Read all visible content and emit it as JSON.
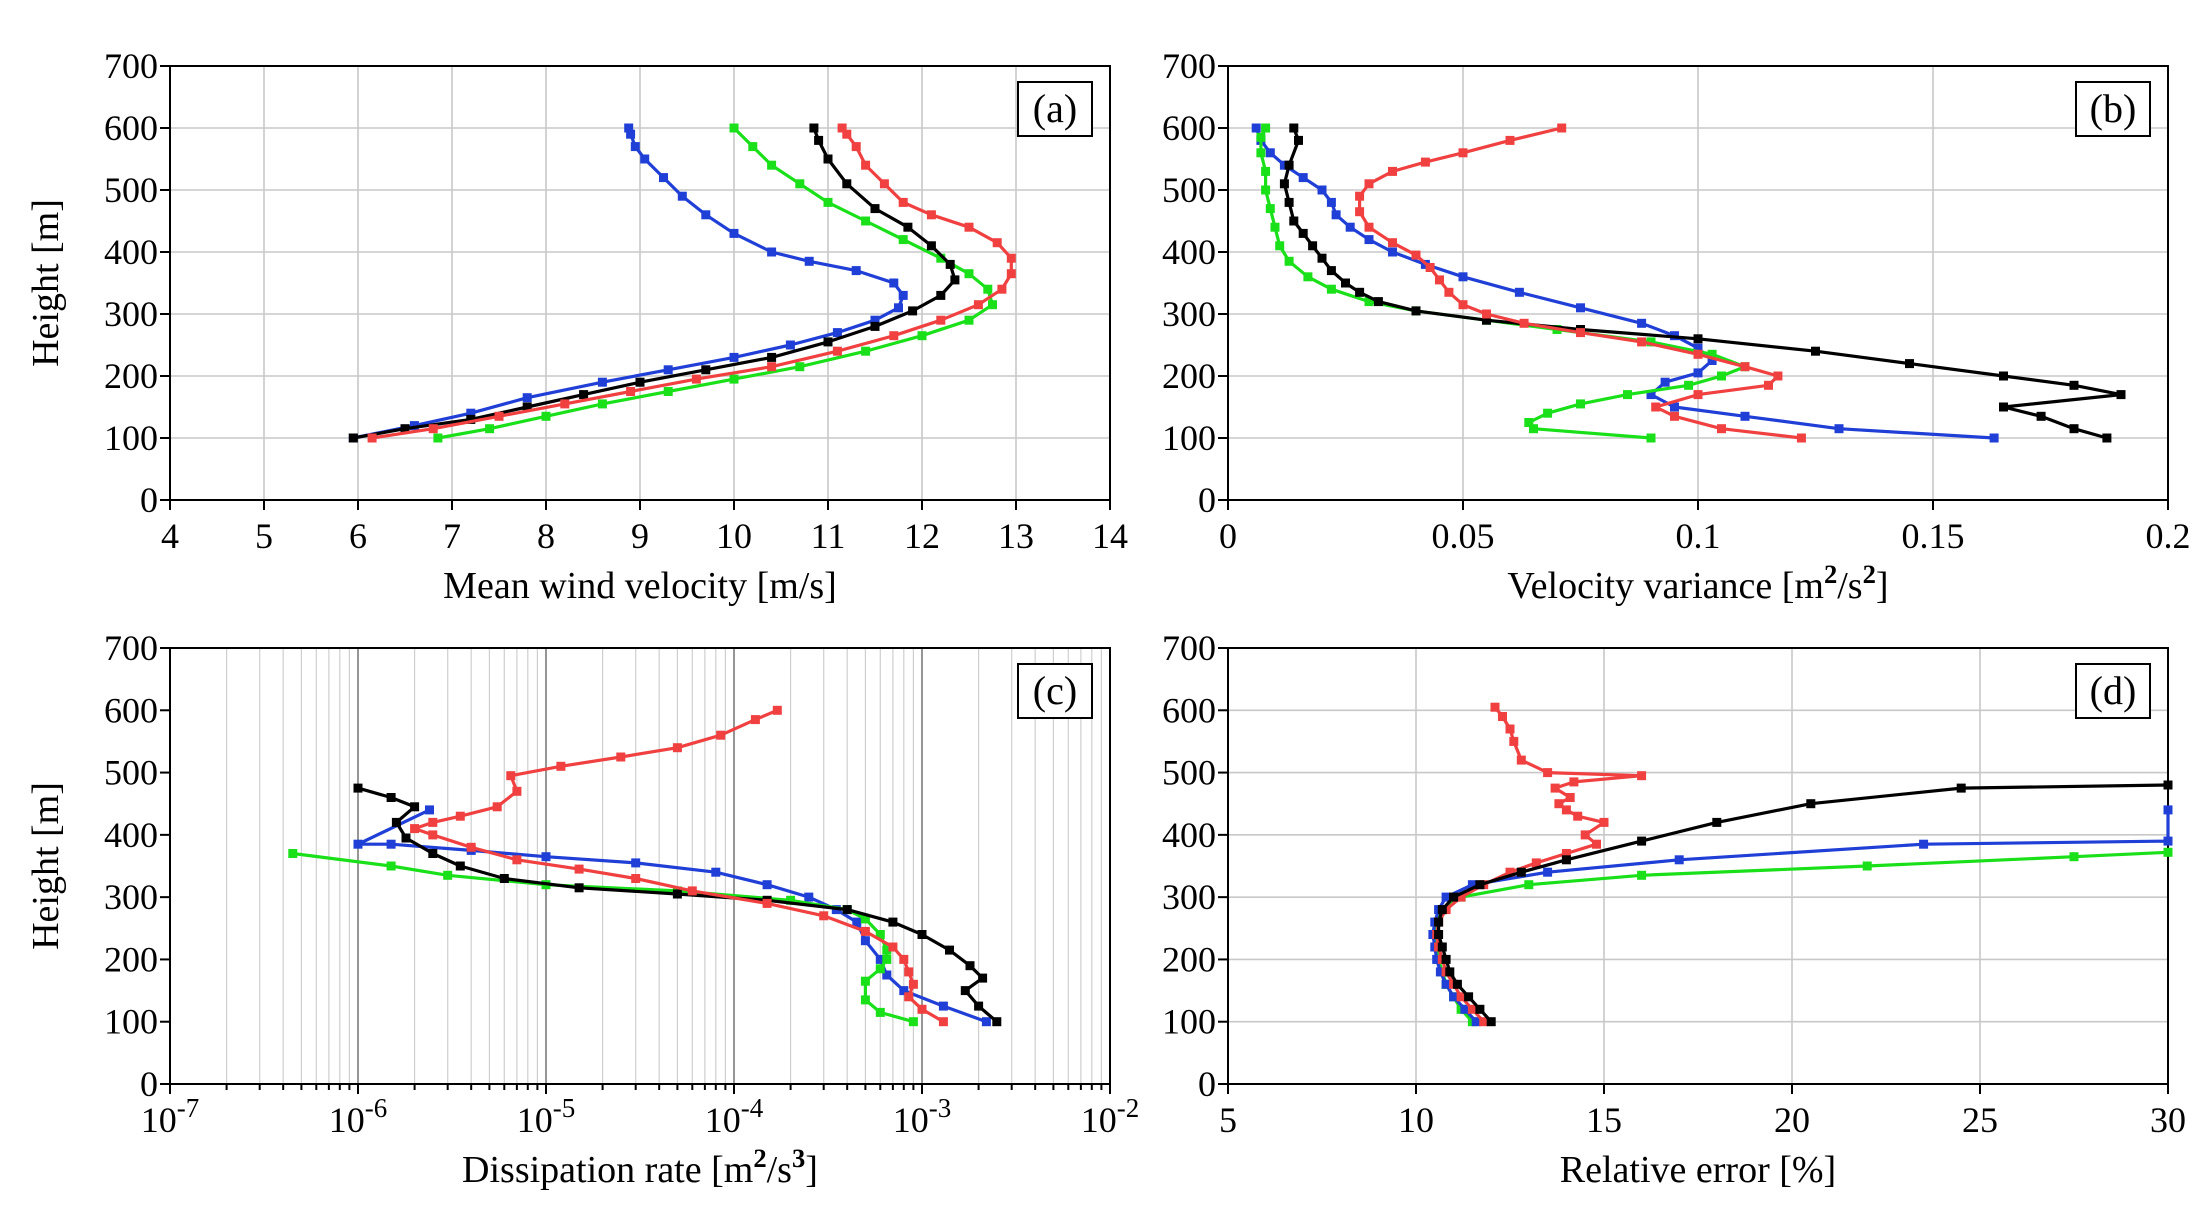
{
  "colors": {
    "black": "#000000",
    "blue": "#1f3fd6",
    "green": "#19e019",
    "red": "#f04040"
  },
  "chart_data": [
    {
      "id": "a",
      "type": "line",
      "panel_tag": "(a)",
      "xlabel": "Mean wind velocity [m/s]",
      "ylabel": "Height [m]",
      "xscale": "linear",
      "xlim": [
        4,
        14
      ],
      "ylim": [
        0,
        700
      ],
      "xticks": [
        4,
        5,
        6,
        7,
        8,
        9,
        10,
        11,
        12,
        13,
        14
      ],
      "xtick_labels": [
        "4",
        "5",
        "6",
        "7",
        "8",
        "9",
        "10",
        "11",
        "12",
        "13",
        "14"
      ],
      "yticks": [
        0,
        100,
        200,
        300,
        400,
        500,
        600,
        700
      ],
      "ytick_labels": [
        "0",
        "100",
        "200",
        "300",
        "400",
        "500",
        "600",
        "700"
      ],
      "grid": true,
      "series": [
        {
          "color": "blue",
          "x": [
            5.95,
            6.6,
            7.2,
            7.8,
            8.6,
            9.3,
            10.0,
            10.6,
            11.1,
            11.5,
            11.75,
            11.8,
            11.7,
            11.3,
            10.8,
            10.4,
            10.0,
            9.7,
            9.45,
            9.25,
            9.05,
            8.95,
            8.9,
            8.88
          ],
          "y": [
            100,
            120,
            140,
            165,
            190,
            210,
            230,
            250,
            270,
            290,
            310,
            330,
            350,
            370,
            385,
            400,
            430,
            460,
            490,
            520,
            550,
            570,
            590,
            600
          ]
        },
        {
          "color": "green",
          "x": [
            6.85,
            7.4,
            8.0,
            8.6,
            9.3,
            10.0,
            10.7,
            11.4,
            12.0,
            12.5,
            12.75,
            12.7,
            12.5,
            12.2,
            11.8,
            11.4,
            11.0,
            10.7,
            10.4,
            10.2,
            10.0
          ],
          "y": [
            100,
            115,
            135,
            155,
            175,
            195,
            215,
            240,
            265,
            290,
            315,
            340,
            365,
            390,
            420,
            450,
            480,
            510,
            540,
            570,
            600
          ]
        },
        {
          "color": "black",
          "x": [
            5.95,
            6.5,
            7.2,
            7.8,
            8.4,
            9.0,
            9.7,
            10.4,
            11.0,
            11.5,
            11.9,
            12.2,
            12.35,
            12.3,
            12.1,
            11.85,
            11.5,
            11.2,
            11.0,
            10.9,
            10.85
          ],
          "y": [
            100,
            115,
            130,
            150,
            170,
            190,
            210,
            230,
            255,
            280,
            305,
            330,
            355,
            380,
            410,
            440,
            470,
            510,
            550,
            580,
            600
          ]
        },
        {
          "color": "red",
          "x": [
            6.15,
            6.8,
            7.5,
            8.2,
            8.9,
            9.6,
            10.4,
            11.1,
            11.7,
            12.2,
            12.6,
            12.85,
            12.95,
            12.95,
            12.8,
            12.5,
            12.1,
            11.8,
            11.6,
            11.4,
            11.3,
            11.2,
            11.15
          ],
          "y": [
            100,
            115,
            135,
            155,
            175,
            195,
            215,
            240,
            265,
            290,
            315,
            340,
            365,
            390,
            415,
            440,
            460,
            480,
            510,
            540,
            570,
            590,
            600
          ]
        }
      ]
    },
    {
      "id": "b",
      "type": "line",
      "panel_tag": "(b)",
      "xlabel": "Velocity variance [m²/s²]",
      "ylabel": "",
      "xscale": "linear",
      "xlim": [
        0,
        0.2
      ],
      "ylim": [
        0,
        700
      ],
      "xticks": [
        0,
        0.05,
        0.1,
        0.15,
        0.2
      ],
      "xtick_labels": [
        "0",
        "0.05",
        "0.1",
        "0.15",
        "0.2"
      ],
      "yticks": [
        0,
        100,
        200,
        300,
        400,
        500,
        600,
        700
      ],
      "ytick_labels": [
        "0",
        "100",
        "200",
        "300",
        "400",
        "500",
        "600",
        "700"
      ],
      "grid": true,
      "series": [
        {
          "color": "blue",
          "x": [
            0.163,
            0.13,
            0.11,
            0.095,
            0.09,
            0.093,
            0.1,
            0.103,
            0.1,
            0.095,
            0.088,
            0.075,
            0.062,
            0.05,
            0.042,
            0.035,
            0.03,
            0.026,
            0.023,
            0.022,
            0.02,
            0.016,
            0.012,
            0.009,
            0.007,
            0.006
          ],
          "y": [
            100,
            115,
            135,
            150,
            170,
            190,
            205,
            225,
            245,
            265,
            285,
            310,
            335,
            360,
            380,
            400,
            420,
            440,
            460,
            480,
            500,
            520,
            540,
            560,
            580,
            600
          ]
        },
        {
          "color": "green",
          "x": [
            0.09,
            0.065,
            0.064,
            0.068,
            0.075,
            0.085,
            0.098,
            0.105,
            0.11,
            0.103,
            0.09,
            0.07,
            0.055,
            0.04,
            0.03,
            0.022,
            0.017,
            0.013,
            0.011,
            0.01,
            0.009,
            0.008,
            0.008,
            0.007,
            0.007,
            0.008
          ],
          "y": [
            100,
            115,
            125,
            140,
            155,
            170,
            185,
            200,
            215,
            235,
            255,
            275,
            290,
            305,
            320,
            340,
            360,
            385,
            410,
            440,
            470,
            500,
            530,
            560,
            585,
            600
          ]
        },
        {
          "color": "black",
          "x": [
            0.187,
            0.18,
            0.173,
            0.165,
            0.19,
            0.18,
            0.165,
            0.145,
            0.125,
            0.1,
            0.075,
            0.055,
            0.04,
            0.032,
            0.028,
            0.025,
            0.022,
            0.02,
            0.018,
            0.016,
            0.014,
            0.013,
            0.012,
            0.013,
            0.015,
            0.014
          ],
          "y": [
            100,
            115,
            135,
            150,
            170,
            185,
            200,
            220,
            240,
            260,
            275,
            290,
            305,
            320,
            335,
            350,
            370,
            390,
            410,
            430,
            450,
            480,
            510,
            540,
            580,
            600
          ]
        },
        {
          "color": "red",
          "x": [
            0.122,
            0.105,
            0.095,
            0.091,
            0.1,
            0.115,
            0.117,
            0.11,
            0.1,
            0.088,
            0.075,
            0.063,
            0.055,
            0.05,
            0.047,
            0.045,
            0.043,
            0.04,
            0.035,
            0.03,
            0.028,
            0.028,
            0.03,
            0.035,
            0.042,
            0.05,
            0.06,
            0.071
          ],
          "y": [
            100,
            115,
            135,
            150,
            170,
            185,
            200,
            215,
            235,
            255,
            270,
            285,
            300,
            315,
            335,
            355,
            375,
            395,
            415,
            440,
            465,
            490,
            510,
            530,
            545,
            560,
            580,
            600
          ]
        }
      ]
    },
    {
      "id": "c",
      "type": "line",
      "panel_tag": "(c)",
      "xlabel": "Dissipation rate [m²/s³]",
      "ylabel": "Height [m]",
      "xscale": "log",
      "xlim": [
        1e-07,
        0.01
      ],
      "ylim": [
        0,
        700
      ],
      "xticks": [
        1e-07,
        1e-06,
        1e-05,
        0.0001,
        0.001,
        0.01
      ],
      "xtick_labels": [
        "10",
        "10",
        "10",
        "10",
        "10",
        "10"
      ],
      "xtick_exponents": [
        "-7",
        "-6",
        "-5",
        "-4",
        "-3",
        "-2"
      ],
      "yticks": [
        0,
        100,
        200,
        300,
        400,
        500,
        600,
        700
      ],
      "ytick_labels": [
        "0",
        "100",
        "200",
        "300",
        "400",
        "500",
        "600",
        "700"
      ],
      "grid": true,
      "series": [
        {
          "color": "blue",
          "x": [
            0.0022,
            0.0013,
            0.0008,
            0.00065,
            0.0006,
            0.0005,
            0.00045,
            0.00035,
            0.00025,
            0.00015,
            8e-05,
            3e-05,
            1e-05,
            4e-06,
            1.5e-06,
            1e-06,
            2.4e-06
          ],
          "y": [
            100,
            125,
            150,
            175,
            200,
            230,
            260,
            280,
            300,
            320,
            340,
            355,
            365,
            375,
            385,
            385,
            440
          ]
        },
        {
          "color": "green",
          "x": [
            0.0009,
            0.0006,
            0.0005,
            0.0005,
            0.0006,
            0.00065,
            0.00065,
            0.0006,
            0.0005,
            0.0004,
            0.0002,
            5e-05,
            1e-05,
            3e-06,
            1.5e-06,
            4.5e-07
          ],
          "y": [
            100,
            115,
            135,
            165,
            185,
            200,
            215,
            240,
            265,
            280,
            295,
            310,
            320,
            335,
            350,
            370
          ]
        },
        {
          "color": "black",
          "x": [
            0.0025,
            0.002,
            0.0017,
            0.0021,
            0.0018,
            0.0014,
            0.001,
            0.0007,
            0.0004,
            0.00015,
            5e-05,
            1.5e-05,
            6e-06,
            3.5e-06,
            2.5e-06,
            1.8e-06,
            1.6e-06,
            2e-06,
            1.5e-06,
            1e-06
          ],
          "y": [
            100,
            125,
            150,
            170,
            190,
            215,
            240,
            260,
            280,
            295,
            305,
            315,
            330,
            350,
            370,
            395,
            420,
            445,
            460,
            475
          ]
        },
        {
          "color": "red",
          "x": [
            0.0013,
            0.001,
            0.00085,
            0.0009,
            0.00085,
            0.0008,
            0.0007,
            0.0005,
            0.0003,
            0.00015,
            6e-05,
            3e-05,
            1.5e-05,
            7e-06,
            4e-06,
            2.5e-06,
            2e-06,
            2.5e-06,
            3.5e-06,
            5.5e-06,
            7e-06,
            6.5e-06,
            1.2e-05,
            2.5e-05,
            5e-05,
            8.5e-05,
            0.00013,
            0.00017
          ],
          "y": [
            100,
            120,
            140,
            160,
            180,
            200,
            220,
            245,
            270,
            290,
            310,
            330,
            345,
            360,
            380,
            400,
            410,
            420,
            430,
            445,
            470,
            495,
            510,
            525,
            540,
            560,
            585,
            600
          ]
        }
      ]
    },
    {
      "id": "d",
      "type": "line",
      "panel_tag": "(d)",
      "xlabel": "Relative error [%]",
      "ylabel": "",
      "xscale": "linear",
      "xlim": [
        5,
        30
      ],
      "ylim": [
        0,
        700
      ],
      "xticks": [
        5,
        10,
        15,
        20,
        25,
        30
      ],
      "xtick_labels": [
        "5",
        "10",
        "15",
        "20",
        "25",
        "30"
      ],
      "yticks": [
        0,
        100,
        200,
        300,
        400,
        500,
        600,
        700
      ],
      "ytick_labels": [
        "0",
        "100",
        "200",
        "300",
        "400",
        "500",
        "600",
        "700"
      ],
      "grid": true,
      "series": [
        {
          "color": "green",
          "x": [
            11.5,
            11.2,
            11.0,
            10.8,
            10.7,
            10.6,
            10.55,
            10.5,
            10.55,
            10.7,
            11.2,
            13.0,
            16.0,
            22.0,
            27.5,
            30.0
          ],
          "y": [
            100,
            120,
            140,
            160,
            180,
            200,
            220,
            240,
            260,
            280,
            300,
            320,
            335,
            350,
            365,
            372
          ]
        },
        {
          "color": "blue",
          "x": [
            11.6,
            11.3,
            11.0,
            10.8,
            10.65,
            10.55,
            10.5,
            10.45,
            10.5,
            10.6,
            10.8,
            11.5,
            13.5,
            17.0,
            23.5,
            30.0,
            30.0
          ],
          "y": [
            100,
            120,
            140,
            160,
            180,
            200,
            220,
            240,
            260,
            280,
            300,
            320,
            340,
            360,
            385,
            390,
            440
          ]
        },
        {
          "color": "red",
          "x": [
            11.8,
            11.5,
            11.2,
            11.0,
            10.8,
            10.7,
            10.6,
            10.55,
            10.6,
            10.8,
            11.2,
            11.8,
            12.5,
            13.2,
            14.0,
            14.8,
            14.5,
            15.0,
            14.3,
            14.0,
            13.8,
            14.1,
            13.7,
            14.2,
            16.0,
            13.5,
            12.8,
            12.6,
            12.5,
            12.3,
            12.1
          ],
          "y": [
            100,
            120,
            140,
            160,
            180,
            200,
            220,
            240,
            260,
            280,
            300,
            320,
            340,
            355,
            370,
            385,
            400,
            420,
            430,
            440,
            450,
            460,
            475,
            485,
            495,
            500,
            520,
            550,
            570,
            590,
            605
          ]
        },
        {
          "color": "black",
          "x": [
            12.0,
            11.7,
            11.4,
            11.1,
            10.9,
            10.8,
            10.7,
            10.6,
            10.6,
            10.7,
            11.0,
            11.7,
            12.8,
            14.0,
            16.0,
            18.0,
            20.5,
            24.5,
            30.0
          ],
          "y": [
            100,
            120,
            140,
            160,
            180,
            200,
            220,
            240,
            260,
            280,
            300,
            320,
            340,
            360,
            390,
            420,
            450,
            475,
            480
          ]
        }
      ]
    }
  ]
}
